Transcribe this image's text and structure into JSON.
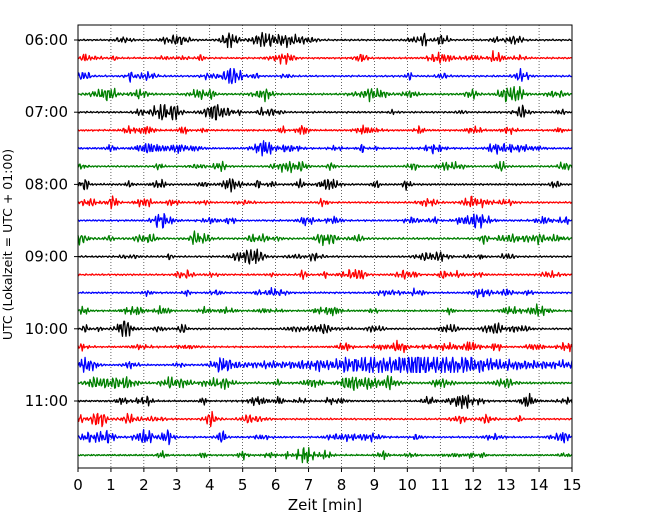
{
  "chart_data": {
    "type": "line",
    "title": "",
    "xlabel": "Zeit  [min]",
    "ylabel": "UTC (Lokalzeit = UTC + 01:00)",
    "xlim": [
      0,
      15
    ],
    "x_ticks": [
      "0",
      "1",
      "2",
      "3",
      "4",
      "5",
      "6",
      "7",
      "8",
      "9",
      "10",
      "11",
      "12",
      "13",
      "14",
      "15"
    ],
    "y_ticks": [
      "06:00",
      "07:00",
      "08:00",
      "09:00",
      "10:00",
      "11:00"
    ],
    "grid": "vertical dotted",
    "legend": "none",
    "trace_colors": [
      "#000000",
      "#ff0000",
      "#0000ff",
      "#008000"
    ],
    "traces": [
      {
        "start": "06:00",
        "color": "#000000",
        "amplitude": 1.0
      },
      {
        "start": "06:15",
        "color": "#ff0000",
        "amplitude": 1.0
      },
      {
        "start": "06:30",
        "color": "#0000ff",
        "amplitude": 1.0
      },
      {
        "start": "06:45",
        "color": "#008000",
        "amplitude": 1.1
      },
      {
        "start": "07:00",
        "color": "#000000",
        "amplitude": 1.0
      },
      {
        "start": "07:15",
        "color": "#ff0000",
        "amplitude": 1.0
      },
      {
        "start": "07:30",
        "color": "#0000ff",
        "amplitude": 1.0
      },
      {
        "start": "07:45",
        "color": "#008000",
        "amplitude": 1.0
      },
      {
        "start": "08:00",
        "color": "#000000",
        "amplitude": 1.1
      },
      {
        "start": "08:15",
        "color": "#ff0000",
        "amplitude": 1.0
      },
      {
        "start": "08:30",
        "color": "#0000ff",
        "amplitude": 1.0
      },
      {
        "start": "08:45",
        "color": "#008000",
        "amplitude": 1.1
      },
      {
        "start": "09:00",
        "color": "#000000",
        "amplitude": 1.0
      },
      {
        "start": "09:15",
        "color": "#ff0000",
        "amplitude": 1.0
      },
      {
        "start": "09:30",
        "color": "#0000ff",
        "amplitude": 1.0
      },
      {
        "start": "09:45",
        "color": "#008000",
        "amplitude": 1.0
      },
      {
        "start": "10:00",
        "color": "#000000",
        "amplitude": 1.0
      },
      {
        "start": "10:15",
        "color": "#ff0000",
        "amplitude": 1.0
      },
      {
        "start": "10:30",
        "color": "#0000ff",
        "amplitude": 2.4,
        "event": "onset ~4.5 min, max ~9-12 min"
      },
      {
        "start": "10:45",
        "color": "#008000",
        "amplitude": 1.3
      },
      {
        "start": "11:00",
        "color": "#000000",
        "amplitude": 1.0
      },
      {
        "start": "11:15",
        "color": "#ff0000",
        "amplitude": 1.0
      },
      {
        "start": "11:30",
        "color": "#0000ff",
        "amplitude": 1.0
      },
      {
        "start": "11:45",
        "color": "#008000",
        "amplitude": 1.0
      }
    ]
  }
}
